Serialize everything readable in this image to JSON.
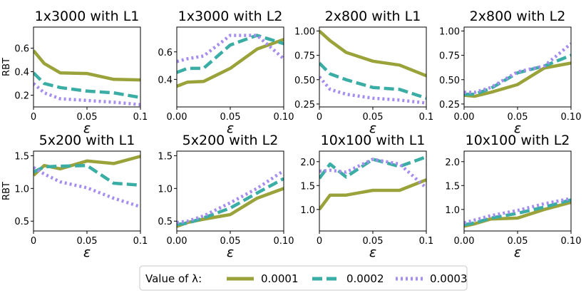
{
  "figure": {
    "ylabel": "RBT",
    "legend_title": "Value of λ:"
  },
  "colors": {
    "s1": "#9aa23a",
    "s2": "#3aada5",
    "s3": "#a68df0"
  },
  "legend": [
    {
      "key": "s1",
      "label": "0.0001"
    },
    {
      "key": "s2",
      "label": "0.0002"
    },
    {
      "key": "s3",
      "label": "0.0003"
    }
  ],
  "chart_data": [
    {
      "type": "line",
      "title": "1x3000 with L1",
      "xlabel": "ε",
      "ylabel": "RBT",
      "xlim": [
        0,
        0.1
      ],
      "ylim": [
        0.1,
        0.78
      ],
      "xticks": [
        0,
        0.05,
        0.1
      ],
      "xtick_labels": [
        "0",
        "0.05",
        "0.1"
      ],
      "yticks": [
        0.2,
        0.4,
        0.6
      ],
      "ytick_labels": [
        "0.2",
        "0.4",
        "0.6"
      ],
      "x": [
        0,
        0.01,
        0.025,
        0.05,
        0.075,
        0.1
      ],
      "series": [
        {
          "name": "0.0001",
          "values": [
            0.58,
            0.47,
            0.39,
            0.385,
            0.335,
            0.33
          ]
        },
        {
          "name": "0.0002",
          "values": [
            0.39,
            0.3,
            0.265,
            0.235,
            0.22,
            0.18
          ]
        },
        {
          "name": "0.0003",
          "values": [
            0.3,
            0.22,
            0.17,
            0.155,
            0.14,
            0.12
          ]
        }
      ]
    },
    {
      "type": "line",
      "title": "1x3000 with L2",
      "xlabel": "ε",
      "ylabel": "",
      "xlim": [
        0,
        0.1
      ],
      "ylim": [
        0.2,
        0.78
      ],
      "xticks": [
        0,
        0.05,
        0.1
      ],
      "xtick_labels": [
        "0.00",
        "0.05",
        "0.10"
      ],
      "yticks": [
        0.4,
        0.6
      ],
      "ytick_labels": [
        "0.4",
        "0.6"
      ],
      "x": [
        0,
        0.01,
        0.025,
        0.05,
        0.075,
        0.1
      ],
      "series": [
        {
          "name": "0.0001",
          "values": [
            0.35,
            0.38,
            0.385,
            0.48,
            0.62,
            0.69
          ]
        },
        {
          "name": "0.0002",
          "values": [
            0.45,
            0.48,
            0.48,
            0.65,
            0.72,
            0.66
          ]
        },
        {
          "name": "0.0003",
          "values": [
            0.53,
            0.55,
            0.57,
            0.72,
            0.72,
            0.55
          ]
        }
      ]
    },
    {
      "type": "line",
      "title": "2x800 with L1",
      "xlabel": "ε",
      "ylabel": "",
      "xlim": [
        0,
        0.1
      ],
      "ylim": [
        0.22,
        1.04
      ],
      "xticks": [
        0,
        0.05,
        0.1
      ],
      "xtick_labels": [
        "0",
        "0.05",
        "0.1"
      ],
      "yticks": [
        0.25,
        0.5,
        0.75,
        1.0
      ],
      "ytick_labels": [
        "0.25",
        "0.50",
        "0.75",
        "1.00"
      ],
      "x": [
        0,
        0.01,
        0.025,
        0.05,
        0.075,
        0.1
      ],
      "series": [
        {
          "name": "0.0001",
          "values": [
            1.0,
            0.9,
            0.78,
            0.69,
            0.65,
            0.54
          ]
        },
        {
          "name": "0.0002",
          "values": [
            0.67,
            0.56,
            0.5,
            0.42,
            0.4,
            0.31
          ]
        },
        {
          "name": "0.0003",
          "values": [
            0.53,
            0.4,
            0.35,
            0.31,
            0.29,
            0.26
          ]
        }
      ]
    },
    {
      "type": "line",
      "title": "2x800 with L2",
      "xlabel": "ε",
      "ylabel": "",
      "xlim": [
        0,
        0.1
      ],
      "ylim": [
        0.22,
        1.04
      ],
      "xticks": [
        0,
        0.05,
        0.1
      ],
      "xtick_labels": [
        "0.00",
        "0.05",
        "0.10"
      ],
      "yticks": [
        0.25,
        0.5,
        0.75,
        1.0
      ],
      "ytick_labels": [
        "0.25",
        "0.50",
        "0.75",
        "1.00"
      ],
      "x": [
        0,
        0.01,
        0.025,
        0.05,
        0.075,
        0.1
      ],
      "series": [
        {
          "name": "0.0001",
          "values": [
            0.34,
            0.33,
            0.37,
            0.45,
            0.62,
            0.67
          ]
        },
        {
          "name": "0.0002",
          "values": [
            0.35,
            0.35,
            0.41,
            0.57,
            0.64,
            0.75
          ]
        },
        {
          "name": "0.0003",
          "values": [
            0.37,
            0.37,
            0.42,
            0.58,
            0.64,
            0.87
          ]
        }
      ]
    },
    {
      "type": "line",
      "title": "5x200 with L1",
      "xlabel": "ε",
      "ylabel": "RBT",
      "xlim": [
        0,
        0.1
      ],
      "ylim": [
        0.35,
        1.57
      ],
      "xticks": [
        0,
        0.05,
        0.1
      ],
      "xtick_labels": [
        "0",
        "0.05",
        "0.1"
      ],
      "yticks": [
        0.5,
        1.0,
        1.5
      ],
      "ytick_labels": [
        "0.5",
        "1.0",
        "1.5"
      ],
      "x": [
        0,
        0.01,
        0.025,
        0.05,
        0.075,
        0.1
      ],
      "series": [
        {
          "name": "0.0001",
          "values": [
            1.2,
            1.35,
            1.3,
            1.42,
            1.38,
            1.49
          ]
        },
        {
          "name": "0.0002",
          "values": [
            1.25,
            1.33,
            1.34,
            1.35,
            1.08,
            1.05
          ]
        },
        {
          "name": "0.0003",
          "values": [
            1.32,
            1.22,
            1.1,
            1.01,
            0.85,
            0.72
          ]
        }
      ]
    },
    {
      "type": "line",
      "title": "5x200 with L2",
      "xlabel": "ε",
      "ylabel": "",
      "xlim": [
        0,
        0.1
      ],
      "ylim": [
        0.35,
        1.57
      ],
      "xticks": [
        0,
        0.05,
        0.1
      ],
      "xtick_labels": [
        "0.00",
        "0.05",
        "0.10"
      ],
      "yticks": [
        0.5,
        1.0,
        1.5
      ],
      "ytick_labels": [
        "0.5",
        "1.0",
        "1.5"
      ],
      "x": [
        0,
        0.01,
        0.025,
        0.05,
        0.075,
        0.1
      ],
      "series": [
        {
          "name": "0.0001",
          "values": [
            0.42,
            0.48,
            0.53,
            0.6,
            0.85,
            1.0
          ]
        },
        {
          "name": "0.0002",
          "values": [
            0.45,
            0.47,
            0.55,
            0.7,
            0.93,
            1.15
          ]
        },
        {
          "name": "0.0003",
          "values": [
            0.48,
            0.5,
            0.58,
            0.78,
            1.0,
            1.27
          ]
        }
      ]
    },
    {
      "type": "line",
      "title": "10x100 with L1",
      "xlabel": "ε",
      "ylabel": "",
      "xlim": [
        0,
        0.1
      ],
      "ylim": [
        0.55,
        2.22
      ],
      "xticks": [
        0,
        0.05,
        0.1
      ],
      "xtick_labels": [
        "0",
        "0.05",
        "0.1"
      ],
      "yticks": [
        1.0,
        1.5,
        2.0
      ],
      "ytick_labels": [
        "1.0",
        "1.5",
        "2.0"
      ],
      "x": [
        0,
        0.01,
        0.025,
        0.05,
        0.075,
        0.1
      ],
      "series": [
        {
          "name": "0.0001",
          "values": [
            1.0,
            1.3,
            1.3,
            1.4,
            1.4,
            1.62
          ]
        },
        {
          "name": "0.0002",
          "values": [
            1.65,
            1.95,
            1.68,
            2.05,
            1.9,
            2.1
          ]
        },
        {
          "name": "0.0003",
          "values": [
            1.8,
            1.82,
            1.78,
            2.05,
            1.95,
            1.45
          ]
        }
      ]
    },
    {
      "type": "line",
      "title": "10x100 with L2",
      "xlabel": "ε",
      "ylabel": "",
      "xlim": [
        0,
        0.1
      ],
      "ylim": [
        0.55,
        2.22
      ],
      "xticks": [
        0,
        0.05,
        0.1
      ],
      "xtick_labels": [
        "0.00",
        "0.05",
        "0.10"
      ],
      "yticks": [
        1.0,
        1.5,
        2.0
      ],
      "ytick_labels": [
        "1.0",
        "1.5",
        "2.0"
      ],
      "x": [
        0,
        0.01,
        0.025,
        0.05,
        0.075,
        0.1
      ],
      "series": [
        {
          "name": "0.0001",
          "values": [
            0.65,
            0.7,
            0.8,
            0.82,
            1.0,
            1.15
          ]
        },
        {
          "name": "0.0002",
          "values": [
            0.68,
            0.72,
            0.82,
            0.92,
            1.05,
            1.2
          ]
        },
        {
          "name": "0.0003",
          "values": [
            0.72,
            0.78,
            0.87,
            0.98,
            1.12,
            1.23
          ]
        }
      ]
    }
  ]
}
